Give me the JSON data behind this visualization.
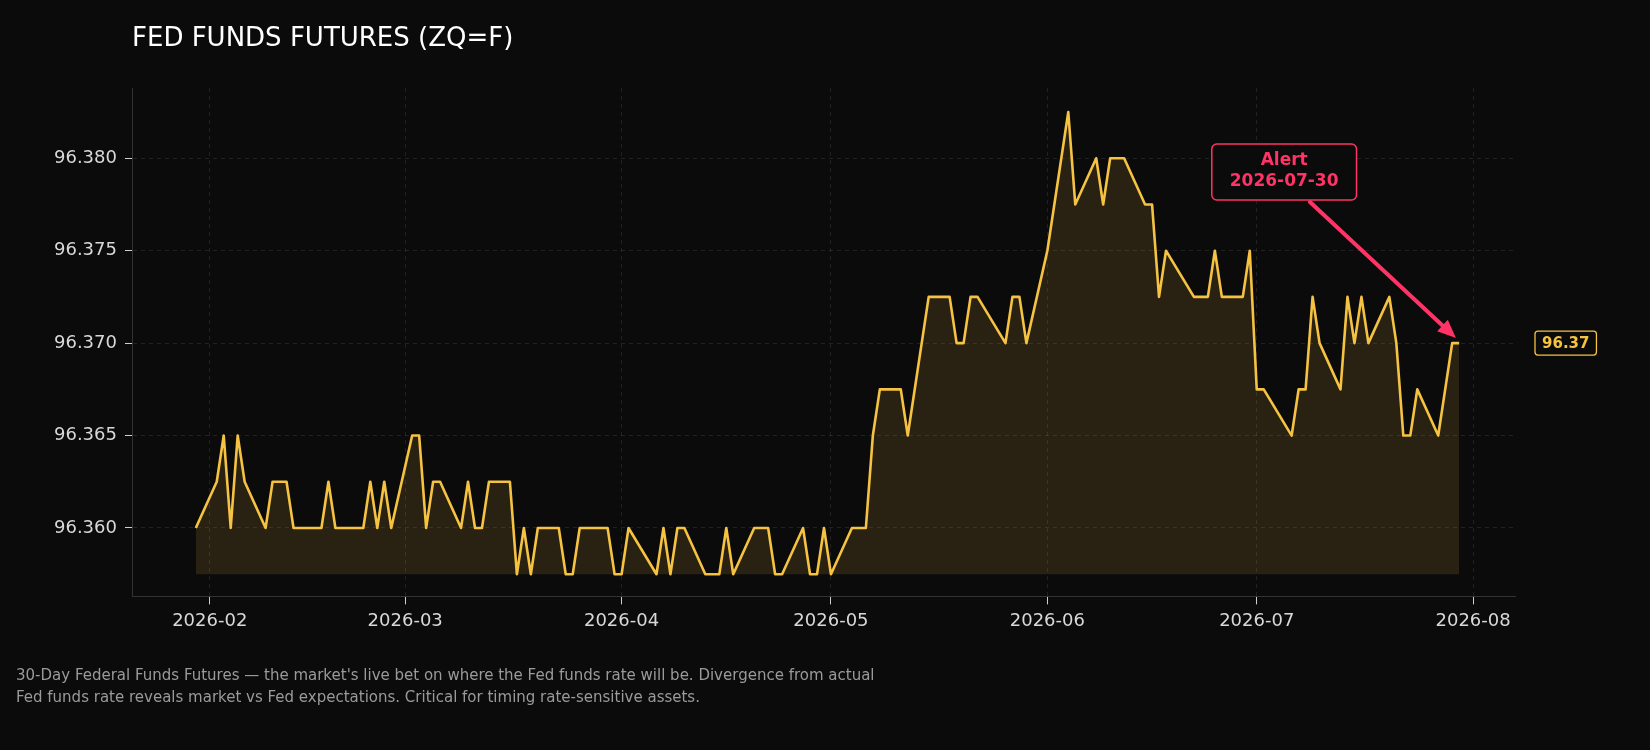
{
  "chart_data": {
    "type": "area",
    "title": "FED FUNDS FUTURES (ZQ=F)",
    "x": [
      "2026-01-30",
      "2026-02-02",
      "2026-02-03",
      "2026-02-04",
      "2026-02-05",
      "2026-02-06",
      "2026-02-09",
      "2026-02-10",
      "2026-02-12",
      "2026-02-13",
      "2026-02-17",
      "2026-02-18",
      "2026-02-19",
      "2026-02-23",
      "2026-02-24",
      "2026-02-25",
      "2026-02-26",
      "2026-02-27",
      "2026-03-02",
      "2026-03-03",
      "2026-03-04",
      "2026-03-05",
      "2026-03-06",
      "2026-03-09",
      "2026-03-10",
      "2026-03-11",
      "2026-03-12",
      "2026-03-13",
      "2026-03-16",
      "2026-03-17",
      "2026-03-18",
      "2026-03-19",
      "2026-03-20",
      "2026-03-23",
      "2026-03-24",
      "2026-03-25",
      "2026-03-26",
      "2026-03-30",
      "2026-03-31",
      "2026-04-01",
      "2026-04-02",
      "2026-04-06",
      "2026-04-07",
      "2026-04-08",
      "2026-04-09",
      "2026-04-10",
      "2026-04-13",
      "2026-04-15",
      "2026-04-16",
      "2026-04-17",
      "2026-04-20",
      "2026-04-22",
      "2026-04-23",
      "2026-04-24",
      "2026-04-27",
      "2026-04-28",
      "2026-04-29",
      "2026-04-30",
      "2026-05-01",
      "2026-05-04",
      "2026-05-06",
      "2026-05-07",
      "2026-05-08",
      "2026-05-11",
      "2026-05-12",
      "2026-05-15",
      "2026-05-18",
      "2026-05-19",
      "2026-05-20",
      "2026-05-21",
      "2026-05-22",
      "2026-05-26",
      "2026-05-27",
      "2026-05-28",
      "2026-05-29",
      "2026-06-01",
      "2026-06-04",
      "2026-06-05",
      "2026-06-08",
      "2026-06-09",
      "2026-06-10",
      "2026-06-12",
      "2026-06-15",
      "2026-06-16",
      "2026-06-17",
      "2026-06-18",
      "2026-06-22",
      "2026-06-24",
      "2026-06-25",
      "2026-06-26",
      "2026-06-29",
      "2026-06-30",
      "2026-07-01",
      "2026-07-02",
      "2026-07-06",
      "2026-07-07",
      "2026-07-08",
      "2026-07-09",
      "2026-07-10",
      "2026-07-13",
      "2026-07-14",
      "2026-07-15",
      "2026-07-16",
      "2026-07-17",
      "2026-07-20",
      "2026-07-21",
      "2026-07-22",
      "2026-07-23",
      "2026-07-24",
      "2026-07-27",
      "2026-07-29",
      "2026-07-30"
    ],
    "series": [
      {
        "color": "#f5c242",
        "values": [
          96.36,
          96.3625,
          96.365,
          96.36,
          96.365,
          96.3625,
          96.36,
          96.3625,
          96.3625,
          96.36,
          96.36,
          96.3625,
          96.36,
          96.36,
          96.3625,
          96.36,
          96.3625,
          96.36,
          96.365,
          96.365,
          96.36,
          96.3625,
          96.3625,
          96.36,
          96.3625,
          96.36,
          96.36,
          96.3625,
          96.3625,
          96.3575,
          96.36,
          96.3575,
          96.36,
          96.36,
          96.3575,
          96.3575,
          96.36,
          96.36,
          96.3575,
          96.3575,
          96.36,
          96.3575,
          96.36,
          96.3575,
          96.36,
          96.36,
          96.3575,
          96.3575,
          96.36,
          96.3575,
          96.36,
          96.36,
          96.3575,
          96.3575,
          96.36,
          96.3575,
          96.3575,
          96.36,
          96.3575,
          96.36,
          96.36,
          96.365,
          96.3675,
          96.3675,
          96.365,
          96.3725,
          96.3725,
          96.37,
          96.37,
          96.3725,
          96.3725,
          96.37,
          96.3725,
          96.3725,
          96.37,
          96.375,
          96.3825,
          96.3775,
          96.38,
          96.3775,
          96.38,
          96.38,
          96.3775,
          96.3775,
          96.3725,
          96.375,
          96.3725,
          96.3725,
          96.375,
          96.3725,
          96.3725,
          96.375,
          96.3675,
          96.3675,
          96.365,
          96.3675,
          96.3675,
          96.3725,
          96.37,
          96.3675,
          96.3725,
          96.37,
          96.3725,
          96.37,
          96.3725,
          96.37,
          96.365,
          96.365,
          96.3675,
          96.365,
          96.37,
          96.37
        ]
      }
    ],
    "xlim": [
      "2026-01-21",
      "2026-08-07"
    ],
    "xticks": [
      {
        "value": "2026-02-01",
        "label": "2026-02"
      },
      {
        "value": "2026-03-01",
        "label": "2026-03"
      },
      {
        "value": "2026-04-01",
        "label": "2026-04"
      },
      {
        "value": "2026-05-01",
        "label": "2026-05"
      },
      {
        "value": "2026-06-01",
        "label": "2026-06"
      },
      {
        "value": "2026-07-01",
        "label": "2026-07"
      },
      {
        "value": "2026-08-01",
        "label": "2026-08"
      }
    ],
    "ylim": [
      96.3563,
      96.3838
    ],
    "yticks": [
      {
        "value": 96.36,
        "label": "96.360"
      },
      {
        "value": 96.365,
        "label": "96.365"
      },
      {
        "value": 96.37,
        "label": "96.370"
      },
      {
        "value": 96.375,
        "label": "96.375"
      },
      {
        "value": 96.38,
        "label": "96.380"
      }
    ],
    "grid": true,
    "legend": false,
    "marker": "none",
    "annotations": [
      "Alert\n2026-07-30",
      "96.37",
      "30-Day Federal Funds Futures — the market's live bet on where the Fed funds rate will be. Divergence from actual Fed funds rate reveals market vs Fed expectations. Critical for timing rate-sensitive assets."
    ]
  }
}
